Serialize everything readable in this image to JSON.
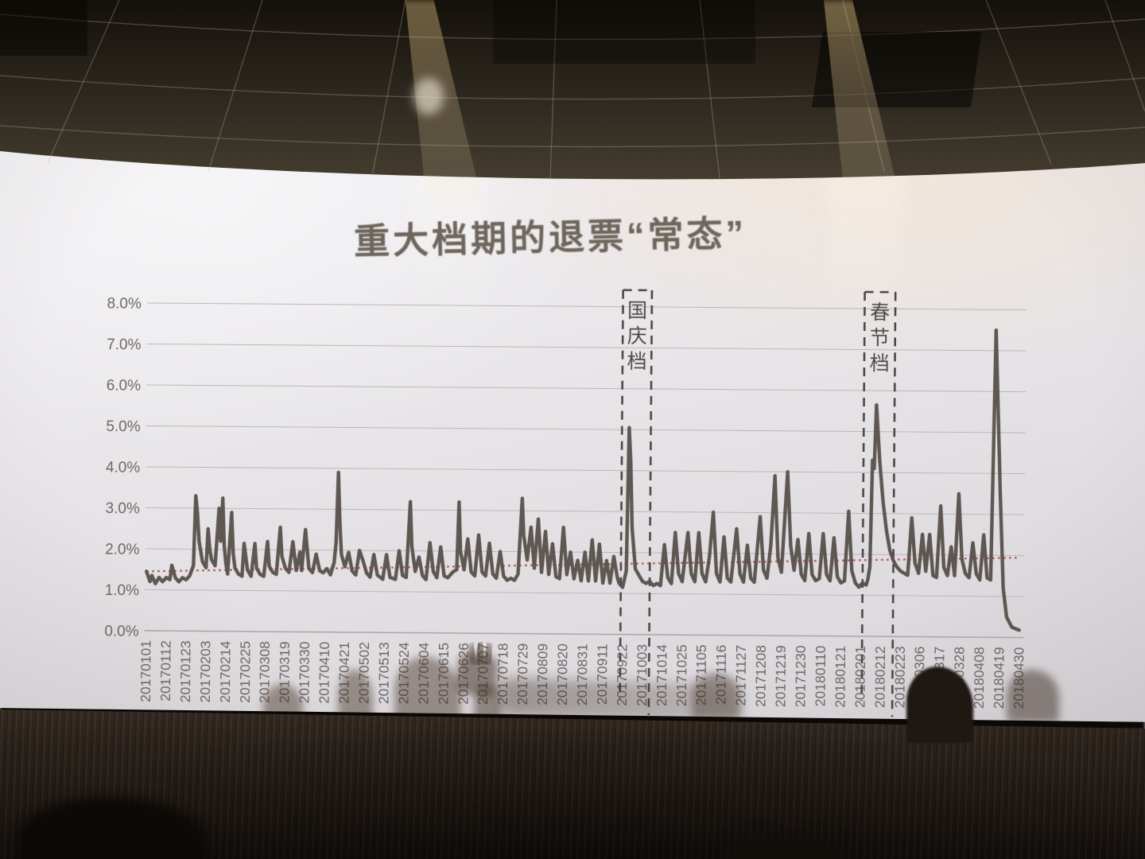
{
  "slide": {
    "title": "重大档期的退票“常态”"
  },
  "chart_data": {
    "type": "line",
    "title": "重大档期的退票“常态”",
    "ylabel": "",
    "xlabel": "",
    "ylim": [
      0,
      8
    ],
    "grid": true,
    "y_ticks": [
      "8.0%",
      "7.0%",
      "6.0%",
      "5.0%",
      "4.0%",
      "3.0%",
      "2.0%",
      "1.0%",
      "0.0%"
    ],
    "x_tick_labels": [
      "20170101",
      "20170112",
      "20170123",
      "20170203",
      "20170214",
      "20170225",
      "20170308",
      "20170319",
      "20170330",
      "20170410",
      "20170421",
      "20170502",
      "20170513",
      "20170524",
      "20170604",
      "20170615",
      "20170626",
      "20170707",
      "20170718",
      "20170729",
      "20170809",
      "20170820",
      "20170831",
      "20170911",
      "20170922",
      "20171003",
      "20171014",
      "20171025",
      "20171105",
      "20171116",
      "20171127",
      "20171208",
      "20171219",
      "20171230",
      "20180110",
      "20180121",
      "20180201",
      "20180212",
      "20180223",
      "20180306",
      "20180317",
      "20180328",
      "20180408",
      "20180419",
      "20180430"
    ],
    "x_tick_interval_days": 11,
    "x_axis_span_days": 484,
    "series": [
      {
        "points": [
          [
            0,
            1.45
          ],
          [
            2,
            1.2
          ],
          [
            3,
            1.35
          ],
          [
            5,
            1.15
          ],
          [
            7,
            1.3
          ],
          [
            9,
            1.2
          ],
          [
            11,
            1.3
          ],
          [
            13,
            1.25
          ],
          [
            14,
            1.6
          ],
          [
            16,
            1.3
          ],
          [
            18,
            1.2
          ],
          [
            20,
            1.3
          ],
          [
            22,
            1.25
          ],
          [
            24,
            1.35
          ],
          [
            26,
            1.6
          ],
          [
            27,
            3.3
          ],
          [
            28,
            2.9
          ],
          [
            29,
            2.2
          ],
          [
            31,
            1.7
          ],
          [
            33,
            1.55
          ],
          [
            34,
            2.5
          ],
          [
            35,
            2.0
          ],
          [
            36,
            1.75
          ],
          [
            38,
            1.6
          ],
          [
            40,
            3.0
          ],
          [
            41,
            2.2
          ],
          [
            42,
            3.25
          ],
          [
            43,
            2.1
          ],
          [
            44,
            1.65
          ],
          [
            45,
            1.4
          ],
          [
            47,
            2.9
          ],
          [
            48,
            1.9
          ],
          [
            49,
            1.55
          ],
          [
            51,
            1.4
          ],
          [
            53,
            1.35
          ],
          [
            54,
            2.15
          ],
          [
            56,
            1.5
          ],
          [
            58,
            1.35
          ],
          [
            60,
            2.15
          ],
          [
            61,
            1.55
          ],
          [
            63,
            1.4
          ],
          [
            65,
            1.35
          ],
          [
            67,
            2.2
          ],
          [
            68,
            1.6
          ],
          [
            70,
            1.45
          ],
          [
            72,
            1.4
          ],
          [
            74,
            2.55
          ],
          [
            75,
            1.85
          ],
          [
            77,
            1.55
          ],
          [
            79,
            1.45
          ],
          [
            81,
            2.2
          ],
          [
            83,
            1.5
          ],
          [
            85,
            1.95
          ],
          [
            86,
            1.5
          ],
          [
            88,
            2.5
          ],
          [
            90,
            1.55
          ],
          [
            92,
            1.45
          ],
          [
            94,
            1.9
          ],
          [
            96,
            1.5
          ],
          [
            98,
            1.45
          ],
          [
            100,
            1.55
          ],
          [
            102,
            1.4
          ],
          [
            104,
            1.7
          ],
          [
            105,
            2.2
          ],
          [
            106,
            3.9
          ],
          [
            107,
            2.7
          ],
          [
            108,
            1.9
          ],
          [
            110,
            1.6
          ],
          [
            112,
            1.95
          ],
          [
            114,
            1.5
          ],
          [
            116,
            1.4
          ],
          [
            118,
            2.0
          ],
          [
            120,
            1.75
          ],
          [
            122,
            1.45
          ],
          [
            124,
            1.35
          ],
          [
            126,
            1.9
          ],
          [
            128,
            1.4
          ],
          [
            131,
            1.3
          ],
          [
            133,
            1.9
          ],
          [
            135,
            1.35
          ],
          [
            138,
            1.3
          ],
          [
            140,
            2.0
          ],
          [
            142,
            1.4
          ],
          [
            144,
            1.35
          ],
          [
            146,
            3.2
          ],
          [
            147,
            2.1
          ],
          [
            149,
            1.5
          ],
          [
            151,
            1.85
          ],
          [
            153,
            1.4
          ],
          [
            155,
            1.3
          ],
          [
            157,
            2.2
          ],
          [
            159,
            1.5
          ],
          [
            161,
            1.35
          ],
          [
            163,
            2.1
          ],
          [
            165,
            1.4
          ],
          [
            167,
            1.35
          ],
          [
            170,
            1.5
          ],
          [
            172,
            1.55
          ],
          [
            173,
            3.2
          ],
          [
            174,
            2.0
          ],
          [
            176,
            1.55
          ],
          [
            178,
            2.3
          ],
          [
            180,
            1.5
          ],
          [
            182,
            1.4
          ],
          [
            184,
            2.4
          ],
          [
            186,
            1.5
          ],
          [
            188,
            1.4
          ],
          [
            190,
            2.2
          ],
          [
            192,
            1.45
          ],
          [
            194,
            1.35
          ],
          [
            196,
            2.0
          ],
          [
            198,
            1.4
          ],
          [
            200,
            1.3
          ],
          [
            202,
            1.35
          ],
          [
            204,
            1.3
          ],
          [
            206,
            1.45
          ],
          [
            208,
            3.3
          ],
          [
            209,
            2.4
          ],
          [
            211,
            1.8
          ],
          [
            213,
            2.6
          ],
          [
            215,
            1.6
          ],
          [
            217,
            2.8
          ],
          [
            219,
            1.5
          ],
          [
            221,
            2.5
          ],
          [
            223,
            1.45
          ],
          [
            225,
            2.2
          ],
          [
            227,
            1.4
          ],
          [
            229,
            1.35
          ],
          [
            231,
            2.6
          ],
          [
            233,
            1.45
          ],
          [
            235,
            2.0
          ],
          [
            237,
            1.35
          ],
          [
            239,
            1.8
          ],
          [
            241,
            1.3
          ],
          [
            243,
            2.0
          ],
          [
            245,
            1.3
          ],
          [
            247,
            2.3
          ],
          [
            249,
            1.3
          ],
          [
            251,
            2.2
          ],
          [
            253,
            1.25
          ],
          [
            255,
            1.8
          ],
          [
            257,
            1.25
          ],
          [
            259,
            1.9
          ],
          [
            261,
            1.4
          ],
          [
            262,
            1.25
          ],
          [
            264,
            1.15
          ],
          [
            266,
            1.55
          ],
          [
            267,
            5.05
          ],
          [
            268,
            4.2
          ],
          [
            269,
            2.6
          ],
          [
            271,
            1.6
          ],
          [
            273,
            1.45
          ],
          [
            275,
            1.3
          ],
          [
            277,
            1.25
          ],
          [
            279,
            1.3
          ],
          [
            281,
            1.2
          ],
          [
            283,
            1.25
          ],
          [
            285,
            1.2
          ],
          [
            287,
            2.2
          ],
          [
            289,
            1.4
          ],
          [
            291,
            1.25
          ],
          [
            293,
            2.5
          ],
          [
            295,
            1.5
          ],
          [
            297,
            1.3
          ],
          [
            300,
            2.5
          ],
          [
            302,
            1.5
          ],
          [
            304,
            1.3
          ],
          [
            306,
            2.5
          ],
          [
            308,
            1.5
          ],
          [
            310,
            1.3
          ],
          [
            312,
            1.9
          ],
          [
            314,
            3.0
          ],
          [
            316,
            1.5
          ],
          [
            318,
            1.3
          ],
          [
            320,
            2.4
          ],
          [
            322,
            1.4
          ],
          [
            324,
            1.3
          ],
          [
            327,
            2.6
          ],
          [
            329,
            1.5
          ],
          [
            331,
            1.3
          ],
          [
            333,
            2.2
          ],
          [
            335,
            1.4
          ],
          [
            337,
            1.3
          ],
          [
            340,
            2.9
          ],
          [
            342,
            1.6
          ],
          [
            344,
            1.4
          ],
          [
            346,
            2.2
          ],
          [
            348,
            3.9
          ],
          [
            350,
            1.9
          ],
          [
            352,
            1.55
          ],
          [
            355,
            4.0
          ],
          [
            357,
            2.2
          ],
          [
            359,
            1.6
          ],
          [
            361,
            2.35
          ],
          [
            363,
            1.5
          ],
          [
            365,
            1.35
          ],
          [
            367,
            2.5
          ],
          [
            369,
            1.5
          ],
          [
            371,
            1.35
          ],
          [
            373,
            1.4
          ],
          [
            375,
            2.5
          ],
          [
            377,
            1.5
          ],
          [
            379,
            1.35
          ],
          [
            381,
            2.4
          ],
          [
            383,
            1.45
          ],
          [
            385,
            1.3
          ],
          [
            387,
            1.35
          ],
          [
            389,
            3.05
          ],
          [
            391,
            1.6
          ],
          [
            393,
            1.3
          ],
          [
            395,
            1.2
          ],
          [
            397,
            1.3
          ],
          [
            399,
            1.25
          ],
          [
            400,
            1.4
          ],
          [
            401,
            1.7
          ],
          [
            402,
            4.3
          ],
          [
            403,
            4.1
          ],
          [
            404,
            5.65
          ],
          [
            406,
            4.3
          ],
          [
            408,
            3.3
          ],
          [
            410,
            2.6
          ],
          [
            412,
            2.1
          ],
          [
            414,
            1.85
          ],
          [
            416,
            1.7
          ],
          [
            418,
            1.6
          ],
          [
            420,
            1.55
          ],
          [
            422,
            1.5
          ],
          [
            424,
            2.9
          ],
          [
            426,
            1.8
          ],
          [
            428,
            1.55
          ],
          [
            430,
            2.5
          ],
          [
            432,
            1.6
          ],
          [
            434,
            2.5
          ],
          [
            436,
            1.5
          ],
          [
            438,
            1.45
          ],
          [
            440,
            3.2
          ],
          [
            442,
            1.7
          ],
          [
            444,
            1.5
          ],
          [
            446,
            2.2
          ],
          [
            448,
            1.5
          ],
          [
            450,
            3.5
          ],
          [
            452,
            1.9
          ],
          [
            454,
            1.55
          ],
          [
            456,
            1.45
          ],
          [
            458,
            2.3
          ],
          [
            460,
            1.55
          ],
          [
            462,
            1.4
          ],
          [
            464,
            2.5
          ],
          [
            466,
            1.45
          ],
          [
            468,
            1.4
          ],
          [
            469,
            4.5
          ],
          [
            470,
            7.5
          ],
          [
            473,
            3.5
          ],
          [
            475,
            1.2
          ],
          [
            477,
            0.5
          ],
          [
            480,
            0.25
          ],
          [
            484,
            0.18
          ]
        ]
      }
    ],
    "average_line": {
      "style": "dotted",
      "start_value": 1.45,
      "end_value": 1.95
    },
    "annotations": [
      {
        "label": "国庆档",
        "start_day": 263,
        "end_day": 279
      },
      {
        "label": "春节档",
        "start_day": 397,
        "end_day": 414
      }
    ],
    "legend": "none"
  },
  "colors": {
    "line": "#57504a",
    "grid": "#bcb7b8",
    "axis_line": "#a9a4a5",
    "average_line": "#b0483d",
    "dashed_window": "#4c4845",
    "axis_text": "#6c6764",
    "annotation_text": "#4f4b47",
    "title_text": "#6e665d"
  }
}
